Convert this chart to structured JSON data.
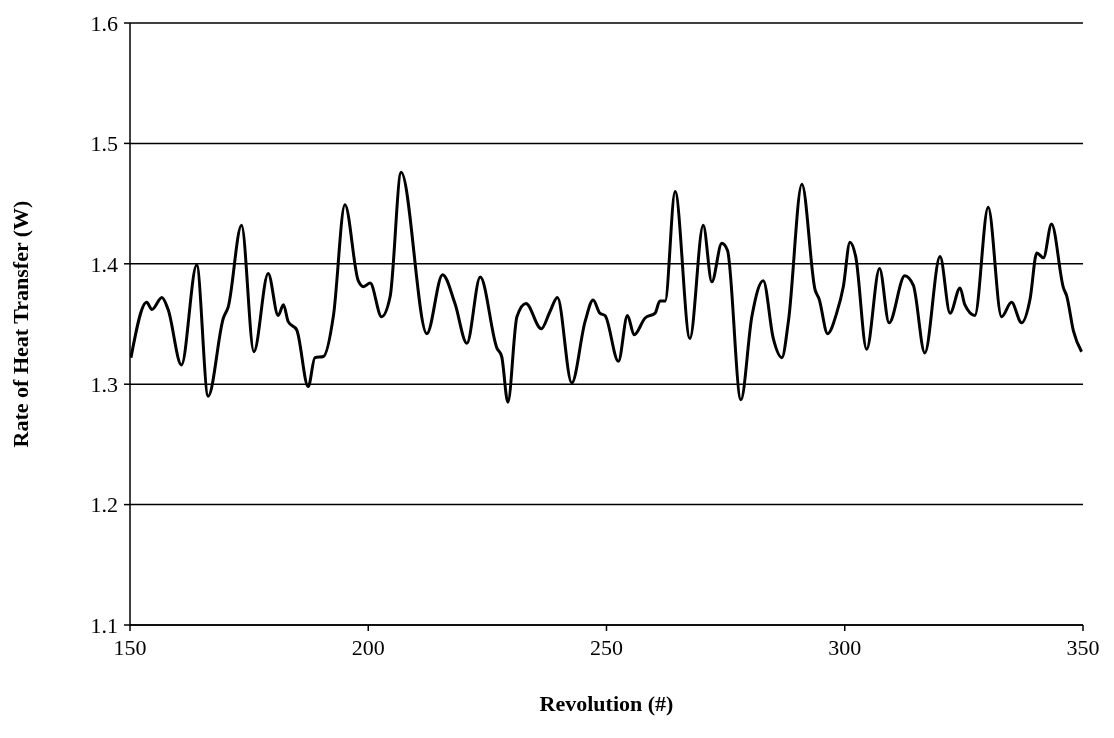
{
  "chart_data": {
    "type": "line",
    "xlabel": "Revolution (#)",
    "ylabel": "Rate of Heat Transfer (W)",
    "xlim": [
      150,
      350
    ],
    "xticks": [
      150,
      200,
      250,
      300,
      350
    ],
    "ylim": [
      1.1,
      1.6
    ],
    "yticks": [
      1.1,
      1.2,
      1.3,
      1.4,
      1.5,
      1.6
    ],
    "grid": "y",
    "line_style": "solid",
    "marker": "none",
    "x": [
      150.2,
      153.5,
      154.6,
      156.7,
      158,
      160.8,
      164,
      166.4,
      169.6,
      170.6,
      173.4,
      176,
      179,
      181.1,
      182.2,
      183.2,
      185,
      187.4,
      188.8,
      190.6,
      192.7,
      195.1,
      197.9,
      199,
      200.4,
      202.8,
      204.6,
      206.9,
      212.3,
      215.6,
      218.2,
      220.7,
      223.5,
      227,
      228,
      229.3,
      231.2,
      233.1,
      236.3,
      238.1,
      239.7,
      242.7,
      245.5,
      247.2,
      248.6,
      249.7,
      252.5,
      254.4,
      255.8,
      258.1,
      260.2,
      261.2,
      262.3,
      264.4,
      267.5,
      270.3,
      272.1,
      274.2,
      275.4,
      278.2,
      280.5,
      282.9,
      285,
      286.8,
      288.2,
      291,
      293.8,
      294.6,
      296.4,
      298.3,
      299.7,
      301.1,
      302.3,
      304.6,
      307.3,
      309.3,
      312.6,
      314.4,
      316.8,
      320,
      322.1,
      324.2,
      325.2,
      327.3,
      330.1,
      332.9,
      335,
      337.1,
      338.9,
      340.3,
      341.7,
      343.4,
      345.9,
      346.6,
      348,
      349.7
    ],
    "series": [
      {
        "color": "#000000",
        "values": [
          1.322,
          1.368,
          1.362,
          1.372,
          1.362,
          1.316,
          1.399,
          1.29,
          1.355,
          1.364,
          1.432,
          1.327,
          1.392,
          1.357,
          1.366,
          1.352,
          1.345,
          1.298,
          1.322,
          1.323,
          1.357,
          1.449,
          1.386,
          1.381,
          1.384,
          1.356,
          1.373,
          1.476,
          1.342,
          1.391,
          1.367,
          1.334,
          1.389,
          1.33,
          1.323,
          1.285,
          1.356,
          1.367,
          1.346,
          1.36,
          1.372,
          1.301,
          1.352,
          1.37,
          1.359,
          1.357,
          1.319,
          1.357,
          1.341,
          1.355,
          1.359,
          1.369,
          1.369,
          1.46,
          1.338,
          1.432,
          1.385,
          1.417,
          1.411,
          1.287,
          1.356,
          1.386,
          1.338,
          1.322,
          1.353,
          1.466,
          1.378,
          1.371,
          1.342,
          1.359,
          1.381,
          1.418,
          1.406,
          1.329,
          1.396,
          1.351,
          1.39,
          1.382,
          1.326,
          1.406,
          1.359,
          1.38,
          1.366,
          1.357,
          1.447,
          1.356,
          1.368,
          1.351,
          1.371,
          1.409,
          1.405,
          1.433,
          1.38,
          1.373,
          1.344,
          1.327
        ]
      }
    ]
  }
}
